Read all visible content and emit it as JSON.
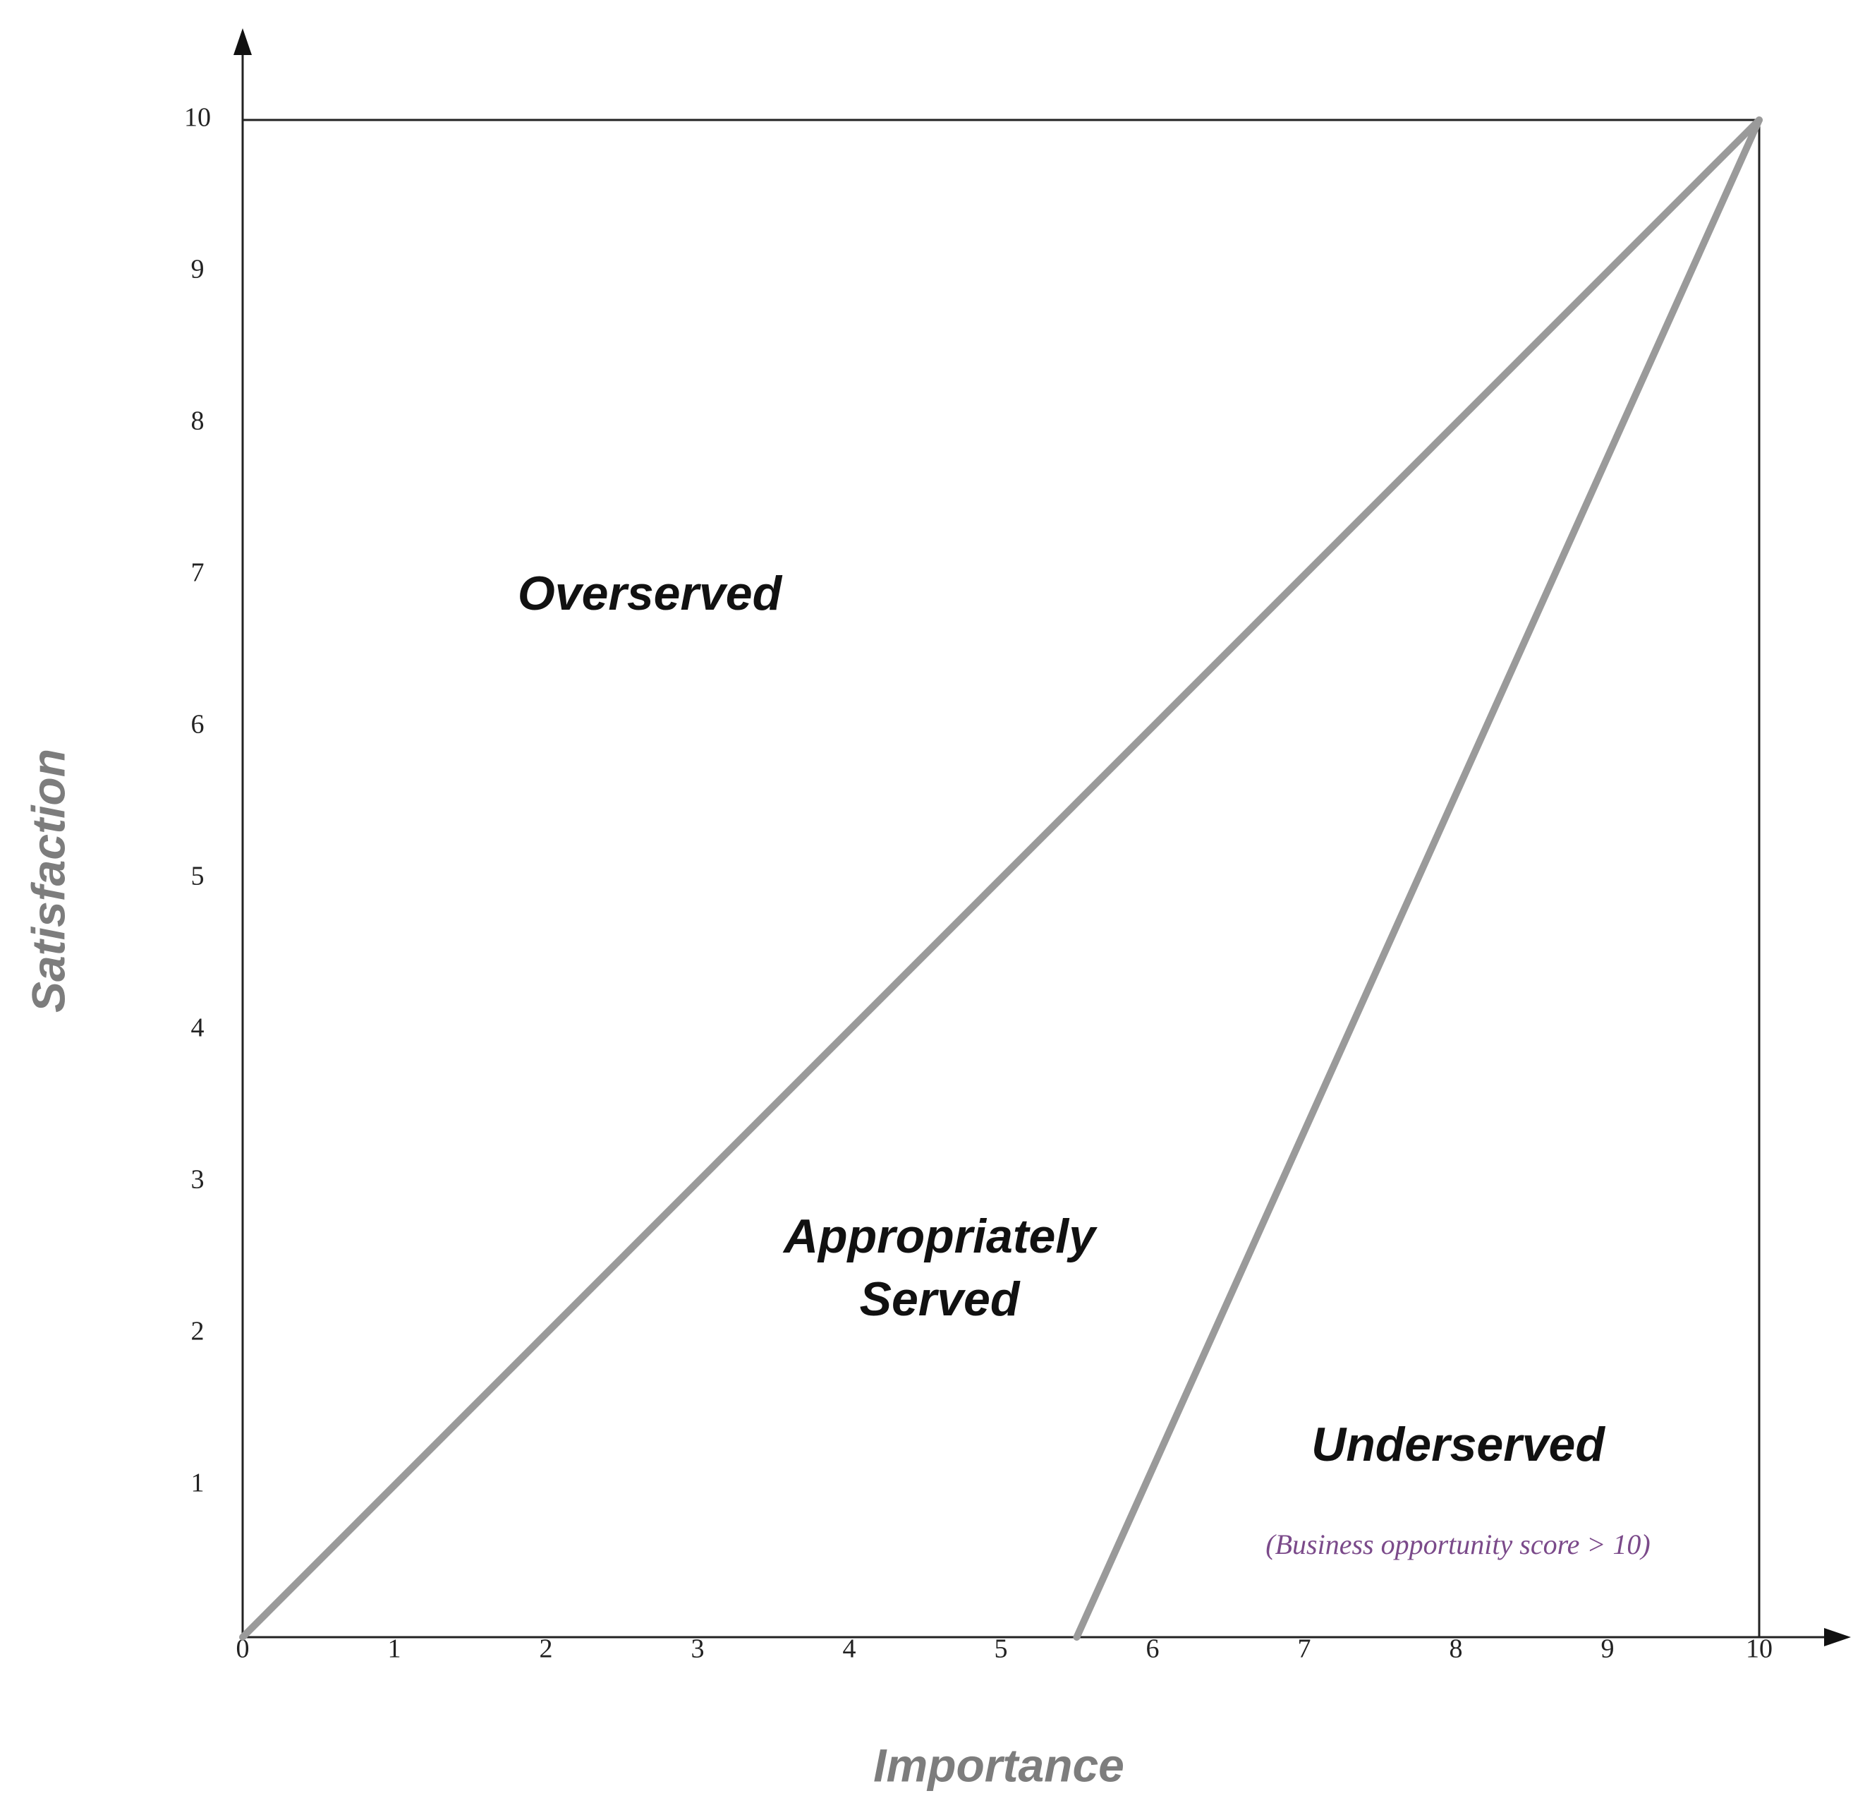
{
  "chart_data": {
    "type": "line",
    "x_label": "Importance",
    "y_label": "Satisfaction",
    "xlim": [
      0,
      10
    ],
    "ylim": [
      0,
      10
    ],
    "xticks": [
      0,
      1,
      2,
      3,
      4,
      5,
      6,
      7,
      8,
      9,
      10
    ],
    "yticks": [
      1,
      2,
      3,
      4,
      5,
      6,
      7,
      8,
      9,
      10
    ],
    "grid": false,
    "series": [
      {
        "color": "#9a9a9a",
        "x": [
          0,
          10
        ],
        "values": [
          0,
          10
        ]
      },
      {
        "color": "#9a9a9a",
        "x": [
          5.5,
          10
        ],
        "values": [
          0,
          10
        ]
      }
    ],
    "annotations": [
      "Overserved",
      "Appropriately",
      "Served",
      "Underserved",
      "(Business opportunity score  > 10)"
    ]
  }
}
